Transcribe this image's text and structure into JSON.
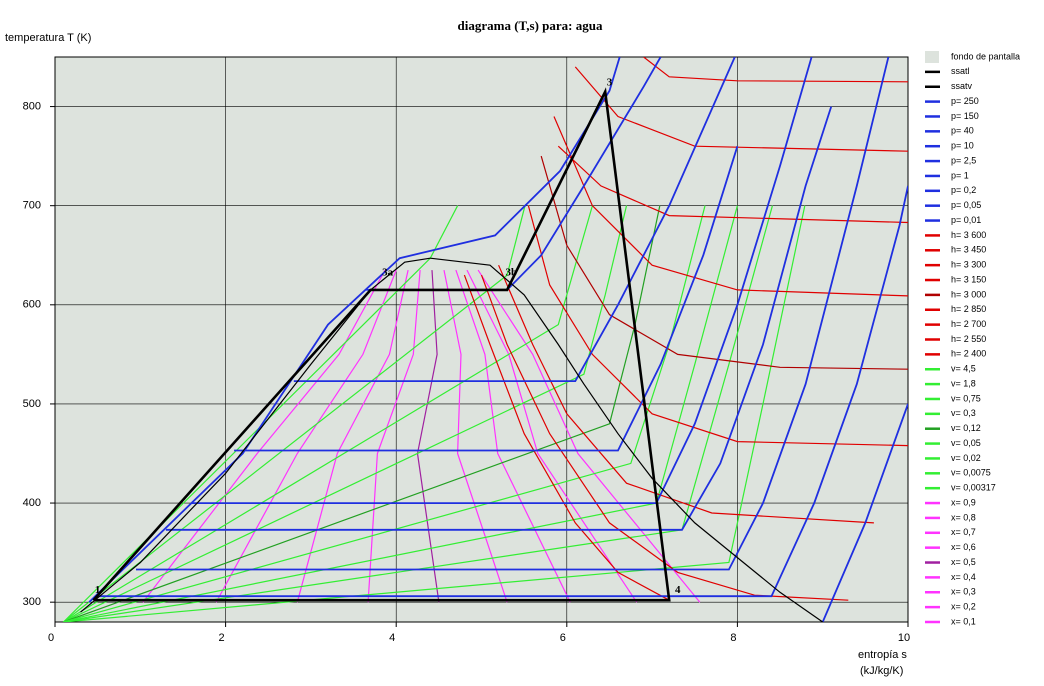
{
  "chart_data": {
    "type": "line",
    "title": "diagrama (T,s) para: agua",
    "y_label": "temperatura  T  (K)",
    "x_label": "entropía  s",
    "x_unit": "(kJ/kg/K)",
    "xlim": [
      0,
      10
    ],
    "ylim": [
      280,
      850
    ],
    "xticks": [
      0,
      2,
      4,
      6,
      8,
      10
    ],
    "yticks": [
      300,
      400,
      500,
      600,
      700,
      800
    ],
    "grid": true,
    "background": {
      "name": "fondo de pantalla",
      "color": "#dde3dd"
    },
    "cycle": {
      "color": "#000000",
      "x": [
        0.45,
        3.7,
        5.3,
        6.45,
        7.2,
        0.45
      ],
      "y": [
        302,
        615,
        615,
        815,
        302,
        302
      ]
    },
    "annotations": [
      {
        "text": "1",
        "x": 0.5,
        "y": 312
      },
      {
        "text": "3",
        "x": 6.5,
        "y": 824
      },
      {
        "text": "3a",
        "x": 3.9,
        "y": 632
      },
      {
        "text": "3b",
        "x": 5.35,
        "y": 632
      },
      {
        "text": "4",
        "x": 7.3,
        "y": 312
      }
    ],
    "series": [
      {
        "name": "ssatl",
        "color": "#000000",
        "x": [
          0.3,
          1.0,
          2.0,
          3.0,
          3.7,
          4.1,
          4.4
        ],
        "y": [
          290,
          340,
          430,
          540,
          615,
          643,
          647
        ]
      },
      {
        "name": "ssatv",
        "color": "#000000",
        "x": [
          4.4,
          5.1,
          5.5,
          5.9,
          6.2,
          6.6,
          7.0,
          7.5,
          8.0,
          8.5,
          9.0
        ],
        "y": [
          647,
          640,
          610,
          560,
          520,
          470,
          425,
          380,
          345,
          310,
          280
        ]
      },
      {
        "name": "p= 250",
        "color": "#1f2fe0",
        "x": [
          0.4,
          2.2,
          3.2,
          4.04,
          5.16,
          5.92,
          6.5,
          6.62
        ],
        "y": [
          300,
          450,
          580,
          647,
          670,
          735,
          816,
          850
        ]
      },
      {
        "name": "p= 150",
        "color": "#1f2fe0",
        "x": [
          3.65,
          5.3,
          5.7,
          6.2,
          6.9,
          7.1
        ],
        "y": [
          615,
          615,
          650,
          720,
          820,
          850
        ]
      },
      {
        "name": "p= 40",
        "color": "#1f2fe0",
        "x": [
          2.8,
          6.1,
          6.6,
          7.2,
          7.97
        ],
        "y": [
          523,
          523,
          600,
          700,
          850
        ]
      },
      {
        "name": "p= 10",
        "color": "#1f2fe0",
        "x": [
          2.1,
          6.6,
          7.1,
          7.6,
          8.0
        ],
        "y": [
          453,
          453,
          540,
          650,
          760
        ]
      },
      {
        "name": "p= 2,5",
        "color": "#1f2fe0",
        "x": [
          1.6,
          7.05,
          7.5,
          8.0,
          8.5,
          8.87
        ],
        "y": [
          400,
          400,
          480,
          600,
          740,
          850
        ]
      },
      {
        "name": "p= 1",
        "color": "#1f2fe0",
        "x": [
          1.3,
          7.35,
          7.8,
          8.3,
          8.8,
          9.1
        ],
        "y": [
          373,
          373,
          440,
          560,
          720,
          800
        ]
      },
      {
        "name": "p= 0,2",
        "color": "#1f2fe0",
        "x": [
          0.95,
          7.9,
          8.3,
          8.8,
          9.4,
          9.77
        ],
        "y": [
          333,
          333,
          400,
          520,
          720,
          850
        ]
      },
      {
        "name": "p= 0,05",
        "color": "#1f2fe0",
        "x": [
          0.5,
          8.4,
          8.9,
          9.4,
          9.9,
          10
        ],
        "y": [
          306,
          306,
          400,
          520,
          680,
          720
        ]
      },
      {
        "name": "p= 0,01",
        "color": "#1f2fe0",
        "x": [
          9.0,
          9.5,
          10
        ],
        "y": [
          280,
          380,
          500
        ]
      },
      {
        "name": "h= 3 600",
        "color": "#e00000",
        "x": [
          6.9,
          7.2,
          8.0,
          10
        ],
        "y": [
          850,
          830,
          826,
          825
        ]
      },
      {
        "name": "h= 3 450",
        "color": "#e00000",
        "x": [
          6.1,
          6.6,
          7.5,
          10
        ],
        "y": [
          840,
          790,
          760,
          755
        ]
      },
      {
        "name": "h= 3 300",
        "color": "#e00000",
        "x": [
          5.9,
          6.4,
          7.2,
          10
        ],
        "y": [
          760,
          720,
          690,
          683
        ]
      },
      {
        "name": "h= 3 150",
        "color": "#e00000",
        "x": [
          5.85,
          6.3,
          7.0,
          8.0,
          10
        ],
        "y": [
          790,
          700,
          640,
          615,
          609
        ]
      },
      {
        "name": "h= 3 000",
        "color": "#b00000",
        "x": [
          5.7,
          6.0,
          6.5,
          7.3,
          8.5,
          10
        ],
        "y": [
          750,
          660,
          590,
          550,
          537,
          535
        ]
      },
      {
        "name": "h= 2 850",
        "color": "#e00000",
        "x": [
          5.55,
          5.8,
          6.3,
          7.0,
          8.0,
          10
        ],
        "y": [
          700,
          620,
          550,
          490,
          462,
          458
        ]
      },
      {
        "name": "h= 2 700",
        "color": "#e00000",
        "x": [
          5.2,
          5.6,
          6.0,
          6.7,
          7.7,
          9.6
        ],
        "y": [
          640,
          560,
          490,
          420,
          390,
          380
        ]
      },
      {
        "name": "h= 2 550",
        "color": "#e00000",
        "x": [
          5.0,
          5.3,
          5.8,
          6.5,
          7.3,
          8.2,
          9.3
        ],
        "y": [
          630,
          560,
          470,
          380,
          330,
          307,
          302
        ]
      },
      {
        "name": "h= 2 400",
        "color": "#e00000",
        "x": [
          4.8,
          5.1,
          5.5,
          6.1,
          6.6,
          7.2
        ],
        "y": [
          630,
          560,
          470,
          380,
          330,
          302
        ]
      },
      {
        "name": "v= 4,5",
        "color": "#33ee33",
        "x": [
          0.1,
          7.9,
          8.3,
          8.79
        ],
        "y": [
          280,
          340,
          500,
          700
        ]
      },
      {
        "name": "v= 1,8",
        "color": "#33ee33",
        "x": [
          0.1,
          7.35,
          7.9,
          8.41
        ],
        "y": [
          280,
          373,
          540,
          700
        ]
      },
      {
        "name": "v= 0,75",
        "color": "#33ee33",
        "x": [
          0.1,
          7.05,
          7.5,
          8.0
        ],
        "y": [
          280,
          400,
          540,
          700
        ]
      },
      {
        "name": "v= 0,3",
        "color": "#33ee33",
        "x": [
          0.1,
          6.75,
          7.2,
          7.62
        ],
        "y": [
          280,
          440,
          560,
          700
        ]
      },
      {
        "name": "v= 0,12",
        "color": "#22a022",
        "x": [
          0.1,
          6.5,
          6.8,
          7.09
        ],
        "y": [
          280,
          480,
          580,
          700
        ]
      },
      {
        "name": "v= 0,05",
        "color": "#33ee33",
        "x": [
          0.1,
          6.2,
          6.45,
          6.7
        ],
        "y": [
          280,
          530,
          610,
          700
        ]
      },
      {
        "name": "v= 0,02",
        "color": "#33ee33",
        "x": [
          0.1,
          5.9,
          6.1,
          6.3
        ],
        "y": [
          280,
          580,
          640,
          700
        ]
      },
      {
        "name": "v= 0,0075",
        "color": "#33ee33",
        "x": [
          0.1,
          5.3,
          5.51
        ],
        "y": [
          280,
          630,
          700
        ]
      },
      {
        "name": "v= 0,00317",
        "color": "#33ee33",
        "x": [
          0.1,
          4.4,
          4.72
        ],
        "y": [
          280,
          647,
          700
        ]
      },
      {
        "name": "x= 0,9",
        "color": "#ff33ff",
        "x": [
          7.56,
          6.13,
          5.6,
          4.96
        ],
        "y": [
          300,
          450,
          550,
          635
        ]
      },
      {
        "name": "x= 0,8",
        "color": "#ff33ff",
        "x": [
          6.82,
          5.66,
          5.32,
          4.83
        ],
        "y": [
          300,
          450,
          550,
          635
        ]
      },
      {
        "name": "x= 0,7",
        "color": "#ff33ff",
        "x": [
          6.04,
          5.19,
          5.04,
          4.7
        ],
        "y": [
          300,
          450,
          550,
          635
        ]
      },
      {
        "name": "x= 0,6",
        "color": "#ff33ff",
        "x": [
          5.3,
          4.72,
          4.76,
          4.56
        ],
        "y": [
          300,
          450,
          550,
          635
        ]
      },
      {
        "name": "x= 0,5",
        "color": "#a020a0",
        "x": [
          4.5,
          4.25,
          4.48,
          4.42
        ],
        "y": [
          300,
          450,
          550,
          635
        ]
      },
      {
        "name": "x= 0,4",
        "color": "#ff33ff",
        "x": [
          3.67,
          3.78,
          4.2,
          4.28
        ],
        "y": [
          300,
          450,
          550,
          635
        ]
      },
      {
        "name": "x= 0,3",
        "color": "#ff33ff",
        "x": [
          2.84,
          3.31,
          3.92,
          4.14
        ],
        "y": [
          300,
          450,
          550,
          635
        ]
      },
      {
        "name": "x= 0,2",
        "color": "#ff33ff",
        "x": [
          1.89,
          2.84,
          3.61,
          4.0
        ],
        "y": [
          300,
          450,
          550,
          635
        ]
      },
      {
        "name": "x= 0,1",
        "color": "#ff33ff",
        "x": [
          1.03,
          2.37,
          3.33,
          3.87
        ],
        "y": [
          300,
          450,
          550,
          635
        ]
      }
    ]
  }
}
